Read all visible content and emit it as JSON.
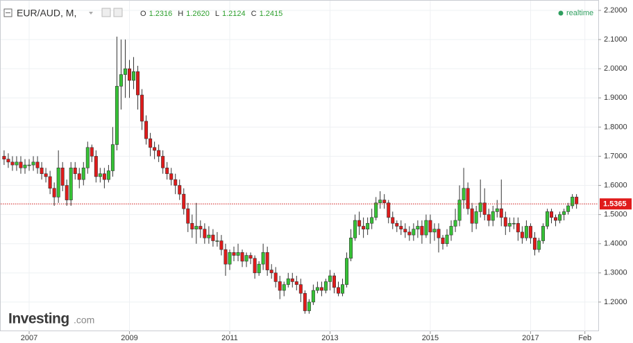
{
  "chart_data": {
    "type": "candlestick",
    "title": "EUR/AUD, M,",
    "readout": [
      {
        "label": "O",
        "value": "1.2316"
      },
      {
        "label": "H",
        "value": "1.2620"
      },
      {
        "label": "L",
        "value": "1.2124"
      },
      {
        "label": "C",
        "value": "1.2415"
      }
    ],
    "status": "realtime",
    "logo": "Investing",
    "logo_suffix": ".com",
    "up_color": "#36c236",
    "down_color": "#e01b1b",
    "grid": true,
    "ylim": [
      1.1,
      2.2356
    ],
    "yticks": [
      {
        "value": 1.2,
        "label": "1.2000"
      },
      {
        "value": 1.3,
        "label": "1.3000"
      },
      {
        "value": 1.4,
        "label": "1.4000"
      },
      {
        "value": 1.5,
        "label": "1.5000"
      },
      {
        "value": 1.6,
        "label": "1.6000"
      },
      {
        "value": 1.7,
        "label": "1.7000"
      },
      {
        "value": 1.8,
        "label": "1.8000"
      },
      {
        "value": 1.9,
        "label": "1.9000"
      },
      {
        "value": 2.0,
        "label": "2.0000"
      },
      {
        "value": 2.1,
        "label": "2.1000"
      },
      {
        "value": 2.2,
        "label": "2.2000"
      }
    ],
    "xticks": [
      {
        "value": "2007-01",
        "label": "2007"
      },
      {
        "value": "2009-01",
        "label": "2009"
      },
      {
        "value": "2011-01",
        "label": "2011"
      },
      {
        "value": "2013-01",
        "label": "2013"
      },
      {
        "value": "2015-01",
        "label": "2015"
      },
      {
        "value": "2017-01",
        "label": "2017"
      },
      {
        "value": "2018-02",
        "label": "Feb"
      }
    ],
    "last_value_label": "1.5365",
    "x": [
      "2006-07",
      "2006-08",
      "2006-09",
      "2006-10",
      "2006-11",
      "2006-12",
      "2007-01",
      "2007-02",
      "2007-03",
      "2007-04",
      "2007-05",
      "2007-06",
      "2007-07",
      "2007-08",
      "2007-09",
      "2007-10",
      "2007-11",
      "2007-12",
      "2008-01",
      "2008-02",
      "2008-03",
      "2008-04",
      "2008-05",
      "2008-06",
      "2008-07",
      "2008-08",
      "2008-09",
      "2008-10",
      "2008-11",
      "2008-12",
      "2009-01",
      "2009-02",
      "2009-03",
      "2009-04",
      "2009-05",
      "2009-06",
      "2009-07",
      "2009-08",
      "2009-09",
      "2009-10",
      "2009-11",
      "2009-12",
      "2010-01",
      "2010-02",
      "2010-03",
      "2010-04",
      "2010-05",
      "2010-06",
      "2010-07",
      "2010-08",
      "2010-09",
      "2010-10",
      "2010-11",
      "2010-12",
      "2011-01",
      "2011-02",
      "2011-03",
      "2011-04",
      "2011-05",
      "2011-06",
      "2011-07",
      "2011-08",
      "2011-09",
      "2011-10",
      "2011-11",
      "2011-12",
      "2012-01",
      "2012-02",
      "2012-03",
      "2012-04",
      "2012-05",
      "2012-06",
      "2012-07",
      "2012-08",
      "2012-09",
      "2012-10",
      "2012-11",
      "2012-12",
      "2013-01",
      "2013-02",
      "2013-03",
      "2013-04",
      "2013-05",
      "2013-06",
      "2013-07",
      "2013-08",
      "2013-09",
      "2013-10",
      "2013-11",
      "2013-12",
      "2014-01",
      "2014-02",
      "2014-03",
      "2014-04",
      "2014-05",
      "2014-06",
      "2014-07",
      "2014-08",
      "2014-09",
      "2014-10",
      "2014-11",
      "2014-12",
      "2015-01",
      "2015-02",
      "2015-03",
      "2015-04",
      "2015-05",
      "2015-06",
      "2015-07",
      "2015-08",
      "2015-09",
      "2015-10",
      "2015-11",
      "2015-12",
      "2016-01",
      "2016-02",
      "2016-03",
      "2016-04",
      "2016-05",
      "2016-06",
      "2016-07",
      "2016-08",
      "2016-09",
      "2016-10",
      "2016-11",
      "2016-12",
      "2017-01",
      "2017-02",
      "2017-03",
      "2017-04",
      "2017-05",
      "2017-06",
      "2017-07",
      "2017-08",
      "2017-09",
      "2017-10",
      "2017-11",
      "2017-12"
    ],
    "open": [
      1.7,
      1.69,
      1.68,
      1.67,
      1.68,
      1.66,
      1.67,
      1.67,
      1.68,
      1.66,
      1.64,
      1.63,
      1.59,
      1.56,
      1.66,
      1.6,
      1.55,
      1.66,
      1.64,
      1.62,
      1.66,
      1.73,
      1.7,
      1.63,
      1.64,
      1.62,
      1.65,
      1.74,
      1.94,
      1.98,
      2.0,
      1.96,
      1.99,
      1.91,
      1.82,
      1.76,
      1.73,
      1.72,
      1.7,
      1.66,
      1.64,
      1.62,
      1.6,
      1.57,
      1.52,
      1.47,
      1.45,
      1.46,
      1.45,
      1.42,
      1.43,
      1.41,
      1.41,
      1.38,
      1.33,
      1.37,
      1.36,
      1.37,
      1.34,
      1.36,
      1.35,
      1.3,
      1.33,
      1.37,
      1.31,
      1.3,
      1.27,
      1.24,
      1.26,
      1.28,
      1.27,
      1.26,
      1.23,
      1.17,
      1.2,
      1.24,
      1.25,
      1.24,
      1.27,
      1.29,
      1.25,
      1.23,
      1.26,
      1.35,
      1.42,
      1.48,
      1.46,
      1.45,
      1.47,
      1.49,
      1.54,
      1.55,
      1.54,
      1.49,
      1.47,
      1.46,
      1.45,
      1.44,
      1.43,
      1.45,
      1.46,
      1.43,
      1.48,
      1.44,
      1.45,
      1.42,
      1.4,
      1.43,
      1.46,
      1.48,
      1.55,
      1.59,
      1.52,
      1.47,
      1.51,
      1.54,
      1.5,
      1.48,
      1.51,
      1.52,
      1.49,
      1.46,
      1.47,
      1.47,
      1.44,
      1.42,
      1.46,
      1.42,
      1.38,
      1.41,
      1.46,
      1.51,
      1.49,
      1.48,
      1.5,
      1.51,
      1.53,
      1.56
    ],
    "high": [
      1.72,
      1.71,
      1.7,
      1.7,
      1.7,
      1.69,
      1.69,
      1.7,
      1.7,
      1.68,
      1.66,
      1.65,
      1.61,
      1.72,
      1.68,
      1.62,
      1.68,
      1.68,
      1.66,
      1.68,
      1.75,
      1.74,
      1.72,
      1.66,
      1.66,
      1.67,
      1.8,
      2.11,
      2.1,
      2.1,
      2.03,
      2.04,
      2.01,
      1.93,
      1.84,
      1.78,
      1.75,
      1.74,
      1.72,
      1.68,
      1.66,
      1.64,
      1.62,
      1.59,
      1.54,
      1.5,
      1.54,
      1.48,
      1.47,
      1.46,
      1.45,
      1.44,
      1.43,
      1.4,
      1.38,
      1.39,
      1.4,
      1.38,
      1.37,
      1.37,
      1.36,
      1.34,
      1.4,
      1.39,
      1.33,
      1.32,
      1.29,
      1.27,
      1.3,
      1.3,
      1.29,
      1.28,
      1.24,
      1.21,
      1.26,
      1.27,
      1.27,
      1.28,
      1.31,
      1.3,
      1.27,
      1.28,
      1.37,
      1.45,
      1.5,
      1.51,
      1.49,
      1.49,
      1.52,
      1.56,
      1.58,
      1.57,
      1.55,
      1.51,
      1.48,
      1.48,
      1.47,
      1.46,
      1.47,
      1.48,
      1.48,
      1.5,
      1.5,
      1.47,
      1.47,
      1.43,
      1.45,
      1.48,
      1.52,
      1.6,
      1.66,
      1.61,
      1.54,
      1.53,
      1.62,
      1.59,
      1.52,
      1.53,
      1.55,
      1.62,
      1.51,
      1.49,
      1.49,
      1.49,
      1.46,
      1.48,
      1.47,
      1.44,
      1.42,
      1.47,
      1.52,
      1.52,
      1.5,
      1.51,
      1.52,
      1.54,
      1.57,
      1.57
    ],
    "low": [
      1.67,
      1.66,
      1.65,
      1.65,
      1.64,
      1.64,
      1.65,
      1.65,
      1.64,
      1.62,
      1.61,
      1.57,
      1.53,
      1.54,
      1.58,
      1.53,
      1.53,
      1.62,
      1.59,
      1.6,
      1.64,
      1.68,
      1.61,
      1.61,
      1.59,
      1.61,
      1.63,
      1.72,
      1.86,
      1.9,
      1.9,
      1.93,
      1.86,
      1.79,
      1.74,
      1.7,
      1.69,
      1.68,
      1.64,
      1.62,
      1.6,
      1.57,
      1.55,
      1.5,
      1.44,
      1.42,
      1.4,
      1.42,
      1.4,
      1.4,
      1.39,
      1.39,
      1.36,
      1.29,
      1.31,
      1.34,
      1.34,
      1.32,
      1.32,
      1.33,
      1.28,
      1.29,
      1.31,
      1.29,
      1.28,
      1.25,
      1.21,
      1.22,
      1.25,
      1.25,
      1.24,
      1.2,
      1.16,
      1.16,
      1.19,
      1.23,
      1.22,
      1.23,
      1.24,
      1.23,
      1.22,
      1.22,
      1.25,
      1.34,
      1.41,
      1.43,
      1.42,
      1.43,
      1.45,
      1.48,
      1.52,
      1.52,
      1.47,
      1.45,
      1.44,
      1.43,
      1.42,
      1.41,
      1.41,
      1.42,
      1.4,
      1.42,
      1.4,
      1.41,
      1.37,
      1.38,
      1.39,
      1.41,
      1.44,
      1.46,
      1.52,
      1.5,
      1.44,
      1.45,
      1.49,
      1.48,
      1.46,
      1.46,
      1.49,
      1.46,
      1.43,
      1.44,
      1.45,
      1.41,
      1.4,
      1.41,
      1.4,
      1.36,
      1.37,
      1.4,
      1.45,
      1.47,
      1.46,
      1.47,
      1.48,
      1.5,
      1.52,
      1.52
    ],
    "close": [
      1.69,
      1.68,
      1.67,
      1.68,
      1.66,
      1.67,
      1.67,
      1.68,
      1.66,
      1.64,
      1.63,
      1.59,
      1.56,
      1.66,
      1.6,
      1.55,
      1.66,
      1.64,
      1.62,
      1.66,
      1.73,
      1.7,
      1.63,
      1.64,
      1.62,
      1.65,
      1.74,
      1.94,
      1.98,
      2.0,
      1.96,
      1.99,
      1.91,
      1.82,
      1.76,
      1.73,
      1.72,
      1.7,
      1.66,
      1.64,
      1.62,
      1.6,
      1.57,
      1.52,
      1.47,
      1.45,
      1.46,
      1.45,
      1.42,
      1.43,
      1.41,
      1.41,
      1.38,
      1.33,
      1.37,
      1.36,
      1.37,
      1.34,
      1.36,
      1.35,
      1.3,
      1.33,
      1.37,
      1.31,
      1.3,
      1.27,
      1.24,
      1.26,
      1.28,
      1.27,
      1.26,
      1.23,
      1.17,
      1.2,
      1.24,
      1.25,
      1.24,
      1.27,
      1.29,
      1.25,
      1.23,
      1.26,
      1.35,
      1.42,
      1.48,
      1.46,
      1.45,
      1.47,
      1.49,
      1.54,
      1.55,
      1.54,
      1.49,
      1.47,
      1.46,
      1.45,
      1.44,
      1.43,
      1.45,
      1.46,
      1.43,
      1.48,
      1.44,
      1.45,
      1.42,
      1.4,
      1.43,
      1.46,
      1.48,
      1.55,
      1.59,
      1.52,
      1.47,
      1.51,
      1.54,
      1.5,
      1.48,
      1.51,
      1.52,
      1.49,
      1.46,
      1.47,
      1.47,
      1.44,
      1.42,
      1.46,
      1.42,
      1.38,
      1.41,
      1.46,
      1.51,
      1.49,
      1.48,
      1.5,
      1.51,
      1.53,
      1.56,
      1.5365
    ]
  }
}
